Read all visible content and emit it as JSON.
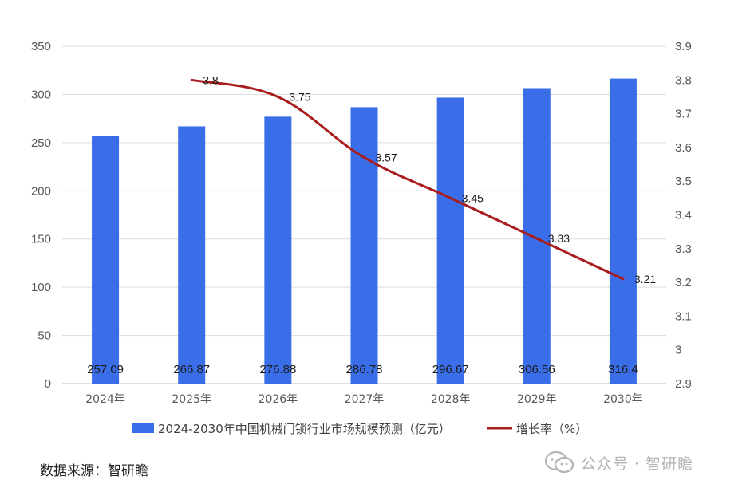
{
  "chart_data": {
    "type": "bar+line",
    "categories": [
      "2024年",
      "2025年",
      "2026年",
      "2027年",
      "2028年",
      "2029年",
      "2030年"
    ],
    "series": [
      {
        "name": "2024-2030年中国机械门锁行业市场规模预测（亿元）",
        "type": "bar",
        "axis": "left",
        "color": "#3a6ee8",
        "values": [
          257.09,
          266.87,
          276.88,
          286.78,
          296.67,
          306.56,
          316.4
        ],
        "labels": [
          "257.09",
          "266.87",
          "276.88",
          "286.78",
          "296.67",
          "306.56",
          "316.4"
        ]
      },
      {
        "name": "增长率（%）",
        "type": "line",
        "axis": "right",
        "color": "#a81c1c",
        "values": [
          null,
          3.8,
          3.75,
          3.57,
          3.45,
          3.33,
          3.21
        ],
        "labels": [
          null,
          "3.8",
          "3.75",
          "3.57",
          "3.45",
          "3.33",
          "3.21"
        ]
      }
    ],
    "y_left": {
      "range": [
        0,
        350
      ],
      "ticks": [
        0,
        50,
        100,
        150,
        200,
        250,
        300,
        350
      ],
      "tick_labels": [
        "0",
        "50",
        "100",
        "150",
        "200",
        "250",
        "300",
        "350"
      ]
    },
    "y_right": {
      "range": [
        2.9,
        3.9
      ],
      "ticks": [
        2.9,
        3.0,
        3.1,
        3.2,
        3.3,
        3.4,
        3.5,
        3.6,
        3.7,
        3.8,
        3.9
      ],
      "tick_labels": [
        "2.9",
        "3",
        "3.1",
        "3.2",
        "3.3",
        "3.4",
        "3.5",
        "3.6",
        "3.7",
        "3.8",
        "3.9"
      ]
    },
    "grid": true,
    "legend_position": "bottom"
  },
  "footer": {
    "source": "数据来源：智研瞻",
    "watermark": "公众号 · 智研瞻"
  }
}
